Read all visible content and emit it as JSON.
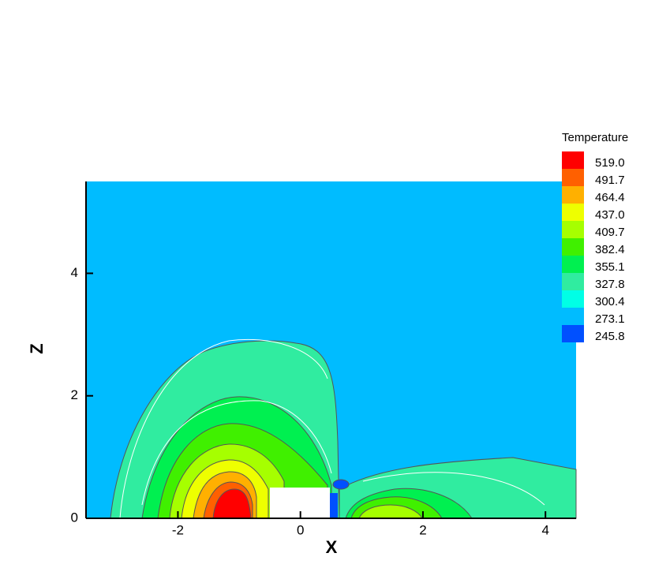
{
  "chart_data": {
    "type": "contour",
    "xlabel": "X",
    "ylabel": "Z",
    "xlim": [
      -3.5,
      4.5
    ],
    "xticks": [
      -2,
      0,
      2,
      4
    ],
    "ylim": [
      0,
      5.5
    ],
    "yticks": [
      0,
      2,
      4
    ],
    "legend_title": "Temperature",
    "levels": [
      {
        "value": 519,
        "label": "519.0"
      },
      491.7,
      464.4,
      {
        "value": 437,
        "label": "437.0"
      },
      409.7,
      382.4,
      355.1,
      327.8,
      300.4,
      273.1,
      245.8
    ],
    "colors": [
      "#ff0000",
      "#ff6000",
      "#ffb000",
      "#eeff00",
      "#a6ff00",
      "#40f000",
      "#00f050",
      "#30eca0",
      "#00ffe6",
      "#00bcff",
      "#0050ff"
    ]
  }
}
